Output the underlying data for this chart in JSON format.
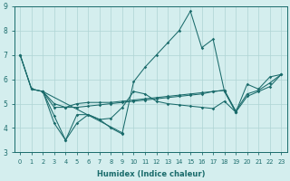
{
  "xlabel": "Humidex (Indice chaleur)",
  "bg_color": "#d4eeee",
  "grid_color": "#aed4d4",
  "line_color": "#1a6b6b",
  "xlim": [
    -0.5,
    23.5
  ],
  "ylim": [
    3,
    9
  ],
  "yticks": [
    3,
    4,
    5,
    6,
    7,
    8,
    9
  ],
  "xticks": [
    0,
    1,
    2,
    3,
    4,
    5,
    6,
    7,
    8,
    9,
    10,
    11,
    12,
    13,
    14,
    15,
    16,
    17,
    18,
    19,
    20,
    21,
    22,
    23
  ],
  "series": {
    "line1_x": [
      0,
      1,
      2,
      3,
      4,
      5,
      6,
      7,
      8,
      9,
      10,
      11,
      12,
      13,
      14,
      15,
      16,
      17,
      18,
      19,
      20,
      21,
      22,
      23
    ],
    "line1_y": [
      7.0,
      5.6,
      5.5,
      5.0,
      4.85,
      4.85,
      4.9,
      4.95,
      5.0,
      5.05,
      5.1,
      5.15,
      5.2,
      5.25,
      5.3,
      5.35,
      5.4,
      5.5,
      5.55,
      4.7,
      5.4,
      5.55,
      5.85,
      6.2
    ],
    "line2_x": [
      0,
      1,
      2,
      3,
      4,
      5,
      6,
      7,
      8,
      9,
      10,
      11,
      12,
      13,
      14,
      15,
      16,
      17,
      18,
      19,
      20,
      21,
      22,
      23
    ],
    "line2_y": [
      7.0,
      5.6,
      5.5,
      4.85,
      4.85,
      5.0,
      5.05,
      5.05,
      5.05,
      5.1,
      5.15,
      5.2,
      5.25,
      5.3,
      5.35,
      5.4,
      5.45,
      5.5,
      5.55,
      4.65,
      5.3,
      5.5,
      5.7,
      6.2
    ],
    "line3_x": [
      0,
      1,
      2,
      9,
      10,
      11,
      12,
      13,
      14,
      15,
      16,
      17,
      18,
      19,
      20,
      21,
      22,
      23
    ],
    "line3_y": [
      7.0,
      5.6,
      5.5,
      3.8,
      5.9,
      6.5,
      7.0,
      7.5,
      8.0,
      8.8,
      7.3,
      7.65,
      5.5,
      4.65,
      5.8,
      5.6,
      6.1,
      6.2
    ],
    "line4_x": [
      2,
      3,
      4,
      5,
      6,
      7,
      8,
      9,
      10,
      11,
      12,
      13,
      14,
      15,
      16,
      17,
      18,
      19
    ],
    "line4_y": [
      5.5,
      4.2,
      3.5,
      4.2,
      4.55,
      4.35,
      4.4,
      4.85,
      5.5,
      5.4,
      5.1,
      5.0,
      4.95,
      4.9,
      4.85,
      4.8,
      5.1,
      4.65
    ],
    "line5_x": [
      2,
      3,
      4,
      5,
      6,
      7,
      8,
      9
    ],
    "line5_y": [
      5.5,
      4.5,
      3.5,
      4.55,
      4.55,
      4.35,
      4.0,
      3.75
    ]
  }
}
